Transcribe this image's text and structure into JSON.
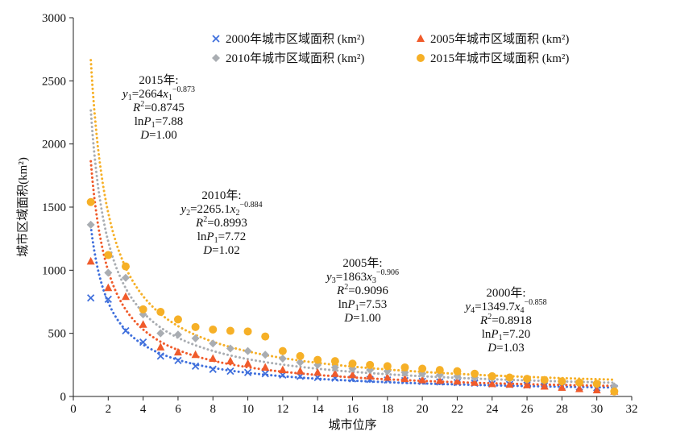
{
  "chart_data": {
    "type": "scatter",
    "xlabel": "城市位序",
    "ylabel": "城市区域面积(km²)",
    "xlim": [
      0,
      32
    ],
    "ylim": [
      0,
      3000
    ],
    "x_ticks": [
      0,
      2,
      4,
      6,
      8,
      10,
      12,
      14,
      16,
      18,
      20,
      22,
      24,
      26,
      28,
      30,
      32
    ],
    "y_ticks": [
      0,
      500,
      1000,
      1500,
      2000,
      2500,
      3000
    ],
    "grid": false,
    "legend_position": "top-right",
    "series": [
      {
        "name": "2000年城市区域面积 (km²)",
        "marker": "x",
        "color": "#3f6fdc",
        "x": [
          1,
          2,
          3,
          4,
          5,
          6,
          7,
          8,
          9,
          10,
          11,
          12,
          13,
          14,
          15,
          16,
          17,
          18,
          19,
          20,
          21,
          22,
          23,
          24,
          25,
          26,
          27,
          28,
          29,
          30,
          31
        ],
        "values": [
          780,
          770,
          520,
          430,
          320,
          285,
          240,
          215,
          200,
          190,
          180,
          170,
          160,
          150,
          145,
          140,
          135,
          130,
          125,
          120,
          115,
          110,
          105,
          100,
          95,
          90,
          85,
          80,
          75,
          70,
          65
        ],
        "fit": {
          "a": 1349.7,
          "b": -0.858
        }
      },
      {
        "name": "2005年城市区域面积 (km²)",
        "marker": "triangle",
        "color": "#f05b2b",
        "x": [
          1,
          2,
          3,
          4,
          5,
          6,
          7,
          8,
          9,
          10,
          11,
          12,
          13,
          14,
          15,
          16,
          17,
          18,
          19,
          20,
          21,
          22,
          23,
          24,
          25,
          26,
          27,
          28,
          29,
          30,
          31
        ],
        "values": [
          1070,
          860,
          790,
          570,
          390,
          350,
          330,
          300,
          280,
          260,
          230,
          210,
          200,
          190,
          180,
          170,
          160,
          150,
          140,
          130,
          125,
          120,
          110,
          100,
          95,
          90,
          80,
          70,
          60,
          50,
          40
        ],
        "fit": {
          "a": 1863,
          "b": -0.906
        }
      },
      {
        "name": "2010年城市区域面积 (km²)",
        "marker": "diamond",
        "color": "#a9adb2",
        "x": [
          1,
          2,
          3,
          4,
          5,
          6,
          7,
          8,
          9,
          10,
          11,
          12,
          13,
          14,
          15,
          16,
          17,
          18,
          19,
          20,
          21,
          22,
          23,
          24,
          25,
          26,
          27,
          28,
          29,
          30,
          31
        ],
        "values": [
          1360,
          980,
          940,
          650,
          500,
          490,
          460,
          420,
          380,
          360,
          330,
          300,
          270,
          250,
          230,
          220,
          210,
          200,
          190,
          180,
          170,
          160,
          150,
          145,
          140,
          135,
          130,
          120,
          110,
          100,
          80
        ],
        "fit": {
          "a": 2265.1,
          "b": -0.884
        }
      },
      {
        "name": "2015年城市区域面积 (km²)",
        "marker": "circle",
        "color": "#f6b027",
        "x": [
          1,
          2,
          3,
          4,
          5,
          6,
          7,
          8,
          9,
          10,
          11,
          12,
          13,
          14,
          15,
          16,
          17,
          18,
          19,
          20,
          21,
          22,
          23,
          24,
          25,
          26,
          27,
          28,
          29,
          30,
          31
        ],
        "values": [
          1540,
          1120,
          1030,
          690,
          670,
          610,
          550,
          530,
          520,
          515,
          475,
          360,
          320,
          290,
          280,
          260,
          250,
          240,
          230,
          220,
          210,
          200,
          180,
          160,
          150,
          140,
          130,
          120,
          110,
          100,
          40
        ],
        "fit": {
          "a": 2664,
          "b": -0.873
        }
      }
    ],
    "annotations": [
      {
        "year": "2015年:",
        "y": "y",
        "ys": "1",
        "a": "=2664",
        "xv": "x",
        "xs": "1",
        "exp": "−0.873",
        "r2": "=0.8745",
        "p": "=7.88",
        "d": "=1.00",
        "ps": "1"
      },
      {
        "year": "2010年:",
        "y": "y",
        "ys": "2",
        "a": "=2265.1",
        "xv": "x",
        "xs": "2",
        "exp": "−0.884",
        "r2": "=0.8993",
        "p": "=7.72",
        "d": "=1.02",
        "ps": "1"
      },
      {
        "year": "2005年:",
        "y": "y",
        "ys": "3",
        "a": "=1863",
        "xv": "x",
        "xs": "3",
        "exp": "−0.906",
        "r2": "=0.9096",
        "p": "=7.53",
        "d": "=1.00",
        "ps": "1"
      },
      {
        "year": "2000年:",
        "y": "y",
        "ys": "4",
        "a": "=1349.7",
        "xv": "x",
        "xs": "4",
        "exp": "−0.858",
        "r2": "=0.8918",
        "p": "=7.20",
        "d": "=1.03",
        "ps": "1"
      }
    ],
    "annotation_labels": {
      "r": "R",
      "two": "2",
      "ln": "ln",
      "P": "P",
      "D": "D"
    }
  }
}
